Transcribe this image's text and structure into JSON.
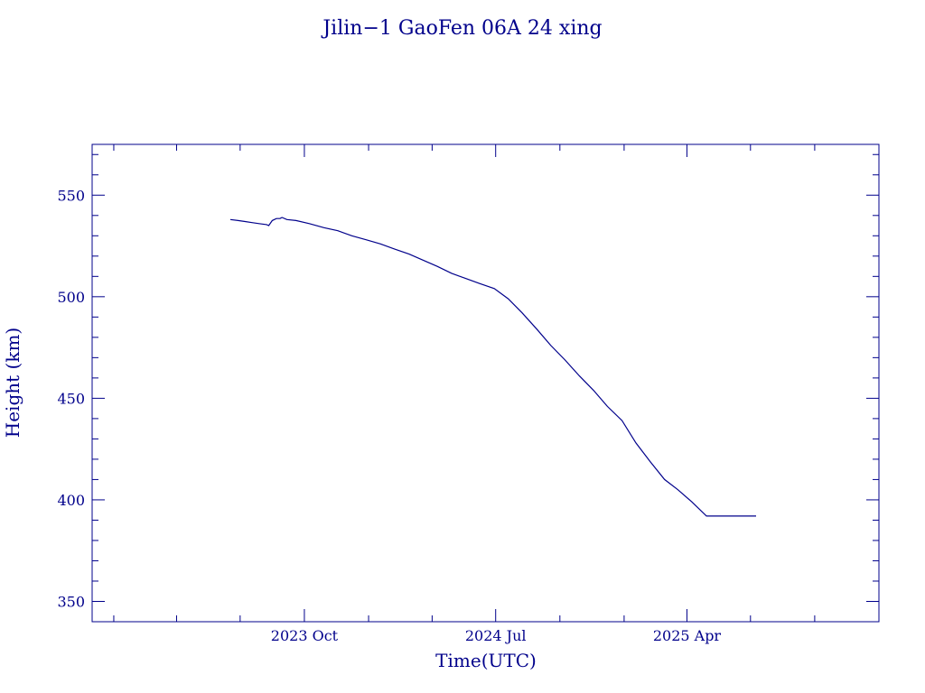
{
  "chart_data": {
    "type": "line",
    "title": "Jilin−1 GaoFen 06A 24 xing",
    "xlabel": "Time(UTC)",
    "ylabel": "Height (km)",
    "ylim": [
      340,
      575
    ],
    "xlim": [
      "2022-12-01",
      "2026-01-01"
    ],
    "x_ticks": [
      {
        "label": "2023 Oct",
        "date": "2023-10-01"
      },
      {
        "label": "2024 Jul",
        "date": "2024-07-01"
      },
      {
        "label": "2025 Apr",
        "date": "2025-04-01"
      }
    ],
    "y_ticks": [
      350,
      400,
      450,
      500,
      550
    ],
    "grid": false,
    "color": "#00008b",
    "series": [
      {
        "x": [
          "2023-06-17",
          "2023-06-28",
          "2023-07-08",
          "2023-07-18",
          "2023-07-28",
          "2023-08-08",
          "2023-08-11",
          "2023-08-16",
          "2023-08-22",
          "2023-08-27",
          "2023-08-30",
          "2023-09-06",
          "2023-09-19",
          "2023-10-08",
          "2023-10-29",
          "2023-11-18",
          "2023-12-08",
          "2023-12-29",
          "2024-01-18",
          "2024-02-07",
          "2024-02-28",
          "2024-03-19",
          "2024-04-08",
          "2024-04-29",
          "2024-05-19",
          "2024-06-08",
          "2024-06-29",
          "2024-07-19",
          "2024-08-08",
          "2024-08-29",
          "2024-09-18",
          "2024-10-08",
          "2024-10-29",
          "2024-11-18",
          "2024-12-08",
          "2024-12-29",
          "2025-01-18",
          "2025-02-07",
          "2025-02-28",
          "2025-03-19",
          "2025-04-08",
          "2025-04-29",
          "2025-05-19",
          "2025-06-08",
          "2025-06-29",
          "2025-07-09"
        ],
        "y": [
          538,
          537.5,
          537,
          536.5,
          536,
          535.5,
          535,
          537.5,
          538.5,
          538.5,
          539,
          538,
          537.5,
          536,
          534,
          532.5,
          530,
          528,
          526,
          523.5,
          521,
          518,
          515,
          511.5,
          509,
          506.5,
          504,
          499,
          492,
          484,
          476,
          469,
          461,
          454,
          446,
          439,
          428,
          419,
          410,
          405,
          399,
          392,
          392,
          392,
          392,
          392
        ]
      }
    ]
  }
}
